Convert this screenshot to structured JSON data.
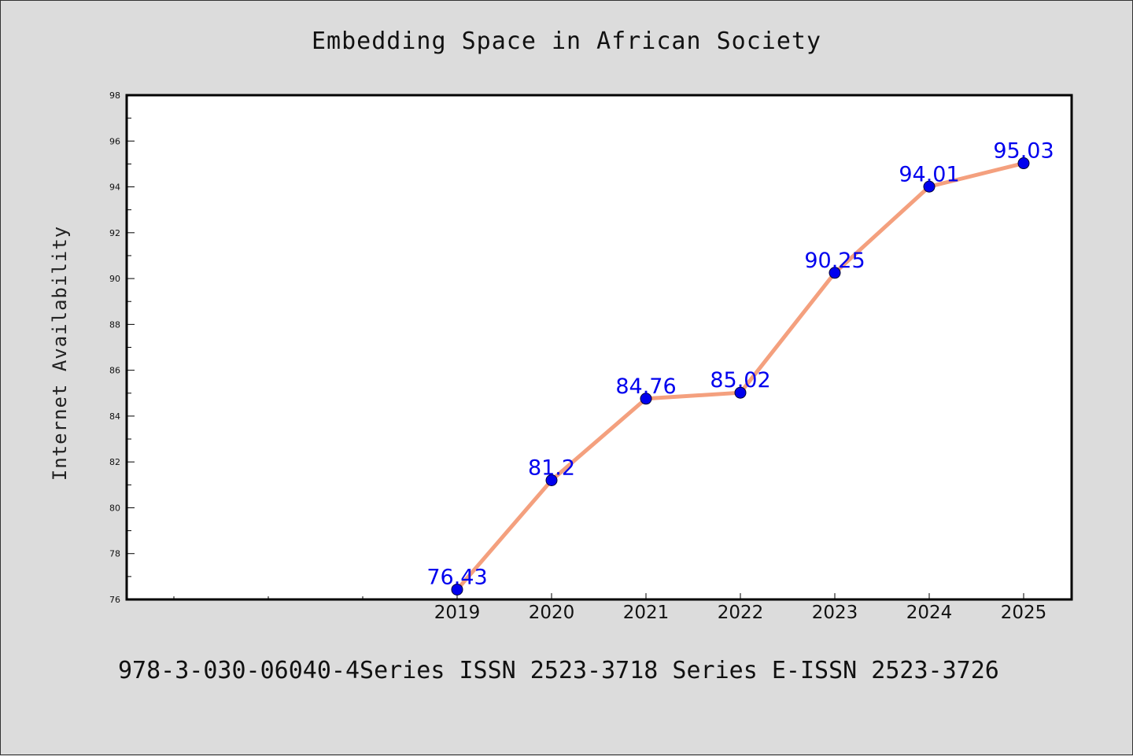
{
  "figure": {
    "title": "Embedding Space in African Society",
    "footer": "978-3-030-06040-4Series ISSN 2523-3718 Series E-ISSN 2523-3726"
  },
  "chart_data": {
    "type": "line",
    "title": "Embedding Space in African Society",
    "xlabel": "",
    "ylabel": "Internet Availability",
    "categories": [
      "2019",
      "2020",
      "2021",
      "2022",
      "2023",
      "2024",
      "2025"
    ],
    "series": [
      {
        "values": [
          76.43,
          81.2,
          84.76,
          85.02,
          90.25,
          94.01,
          95.03
        ]
      }
    ],
    "data_labels": [
      "76.43",
      "81.2",
      "84.76",
      "85.02",
      "90.25",
      "94.01",
      "95.03"
    ],
    "ylim": [
      76,
      98
    ],
    "yticks": [
      76,
      78,
      80,
      82,
      84,
      86,
      88,
      90,
      92,
      94,
      96,
      98
    ],
    "grid": false,
    "legend": "none",
    "colors": {
      "line": "#f4a07e",
      "marker": "#0000ee",
      "marker_edge": "#000033",
      "data_label": "#0000ee",
      "axis": "#000000",
      "plot_bg": "#ffffff",
      "figure_bg": "#dcdcdc"
    }
  }
}
